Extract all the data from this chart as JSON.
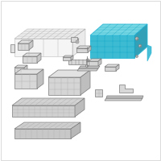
{
  "bg_color": "#ffffff",
  "highlight_color": "#29b6d5",
  "gray_stroke": "#7a7a7a",
  "gray_fill": "#d0d0d0",
  "gray_light": "#b0b0b0",
  "white": "#ffffff",
  "fig_size": [
    2.0,
    2.0
  ],
  "dpi": 100,
  "lw": 0.5,
  "border_color": "#cccccc"
}
